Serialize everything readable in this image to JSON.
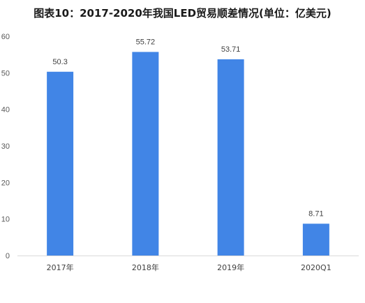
{
  "chart_data": {
    "type": "bar",
    "title": "图表10：2017-2020年我国LED贸易顺差情况(单位：亿美元)",
    "categories": [
      "2017年",
      "2018年",
      "2019年",
      "2020Q1"
    ],
    "values": [
      50.3,
      55.72,
      53.71,
      8.71
    ],
    "value_labels": [
      "50.3",
      "55.72",
      "53.71",
      "8.71"
    ],
    "yticks": [
      0,
      10,
      20,
      30,
      40,
      50,
      60
    ],
    "ytick_labels": [
      "0",
      "10",
      "20",
      "30",
      "40",
      "50",
      "60"
    ],
    "ylim": [
      0,
      60
    ],
    "xlabel": "",
    "ylabel": "",
    "grid": false,
    "legend": "none",
    "bar_color": "#4185e6",
    "axis_color": "#d9d9d9"
  }
}
